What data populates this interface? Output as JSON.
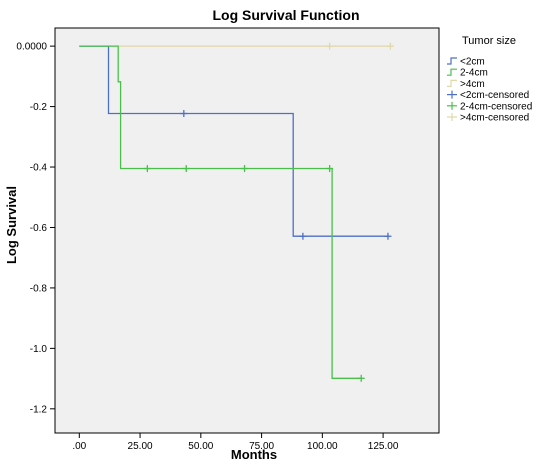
{
  "chart_data": {
    "type": "line",
    "title": "Log Survival Function",
    "xlabel": "Months",
    "ylabel": "Log Survival",
    "xlim": [
      -10,
      148
    ],
    "ylim": [
      -1.28,
      0.06
    ],
    "x_ticks": [
      0,
      25,
      50,
      75,
      100,
      125
    ],
    "x_tick_labels": [
      ".00",
      "25.00",
      "50.00",
      "75.00",
      "100.00",
      "125.00"
    ],
    "y_ticks": [
      0,
      -0.2,
      -0.4,
      -0.6,
      -0.8,
      -1.0,
      -1.2
    ],
    "y_tick_labels": [
      "0.0000",
      "-0.2",
      "-0.4",
      "-0.6",
      "-0.8",
      "-1.0",
      "-1.2"
    ],
    "grid": false,
    "legend_title": "Tumor size",
    "legend_position": "right",
    "series": [
      {
        "name": "<2cm",
        "color": "#4e6fc8",
        "kind": "step",
        "points": [
          [
            0,
            0
          ],
          [
            12,
            0
          ],
          [
            12,
            -0.223
          ],
          [
            88,
            -0.223
          ],
          [
            88,
            -0.629
          ],
          [
            127,
            -0.629
          ]
        ]
      },
      {
        "name": "2-4cm",
        "color": "#48c04a",
        "kind": "step",
        "points": [
          [
            0,
            0
          ],
          [
            16,
            0
          ],
          [
            16,
            -0.118
          ],
          [
            17,
            -0.118
          ],
          [
            17,
            -0.405
          ],
          [
            104,
            -0.405
          ],
          [
            104,
            -1.099
          ],
          [
            116,
            -1.099
          ]
        ]
      },
      {
        "name": ">4cm",
        "color": "#e0d8a8",
        "kind": "step",
        "points": [
          [
            0,
            0
          ],
          [
            128,
            0
          ]
        ]
      },
      {
        "name": "<2cm-censored",
        "color": "#4e6fc8",
        "kind": "censored",
        "points": [
          [
            43,
            -0.223
          ],
          [
            92,
            -0.629
          ],
          [
            127,
            -0.629
          ]
        ]
      },
      {
        "name": "2-4cm-censored",
        "color": "#48c04a",
        "kind": "censored",
        "points": [
          [
            28,
            -0.405
          ],
          [
            44,
            -0.405
          ],
          [
            68,
            -0.405
          ],
          [
            103,
            -0.405
          ],
          [
            116,
            -1.099
          ]
        ]
      },
      {
        "name": ">4cm-censored",
        "color": "#e0d8a8",
        "kind": "censored",
        "points": [
          [
            103,
            0
          ],
          [
            128,
            0
          ]
        ]
      }
    ]
  }
}
